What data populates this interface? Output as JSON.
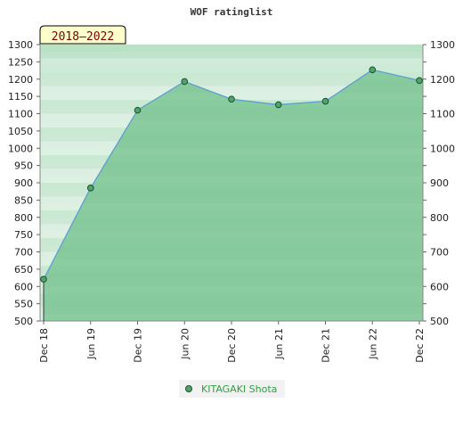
{
  "chart_data": {
    "type": "area",
    "title": "WOF ratinglist",
    "badge": "2018–2022",
    "categories": [
      "Dec 18",
      "Jun 19",
      "Dec 19",
      "Jun 20",
      "Dec 20",
      "Jun 21",
      "Dec 21",
      "Jun 22",
      "Dec 22"
    ],
    "series": [
      {
        "name": "KITAGAKI Shota",
        "values": [
          621,
          885,
          1110,
          1193,
          1142,
          1126,
          1136,
          1227,
          1196
        ]
      }
    ],
    "ylim": [
      500,
      1300
    ],
    "yticks_left": [
      500,
      550,
      600,
      650,
      700,
      750,
      800,
      850,
      900,
      950,
      1000,
      1050,
      1100,
      1150,
      1200,
      1250,
      1300
    ],
    "yticks_right": [
      500,
      600,
      700,
      800,
      900,
      1000,
      1100,
      1200,
      1300
    ],
    "legend_position": "bottom-center",
    "colors": {
      "fill": "#7cc695",
      "line": "#5aa0d0",
      "marker": "#4ea56a",
      "badge_bg": "#ffffcc",
      "legend_text": "#2ea043"
    }
  }
}
